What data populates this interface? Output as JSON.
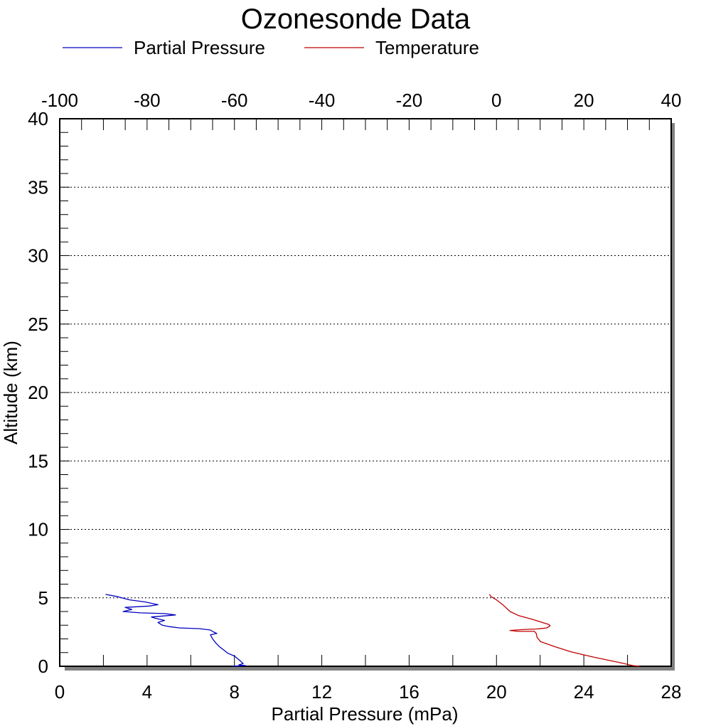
{
  "chart_data": {
    "type": "line",
    "title": "Ozonesonde Data",
    "xlabel": "Partial Pressure (mPa)",
    "ylabel": "Altitude (km)",
    "x_bottom": {
      "range": [
        0,
        28
      ],
      "ticks": [
        "0",
        "4",
        "8",
        "12",
        "16",
        "20",
        "24",
        "28"
      ]
    },
    "x_top": {
      "range": [
        -100,
        40
      ],
      "ticks": [
        "-100",
        "-80",
        "-60",
        "-40",
        "-20",
        "0",
        "20",
        "40"
      ]
    },
    "y": {
      "range": [
        0,
        40
      ],
      "ticks": [
        "0",
        "5",
        "10",
        "15",
        "20",
        "25",
        "30",
        "35",
        "40"
      ],
      "grid": "dotted"
    },
    "legend": {
      "position": "top"
    },
    "series": [
      {
        "name": "Partial Pressure",
        "axis": "bottom",
        "color": "#0000c0",
        "points": [
          [
            7.9,
            0.0
          ],
          [
            8.5,
            0.05
          ],
          [
            8.2,
            0.1
          ],
          [
            8.4,
            0.2
          ],
          [
            8.3,
            0.35
          ],
          [
            8.15,
            0.55
          ],
          [
            8.0,
            0.75
          ],
          [
            7.7,
            0.95
          ],
          [
            7.5,
            1.2
          ],
          [
            7.3,
            1.45
          ],
          [
            7.15,
            1.7
          ],
          [
            7.0,
            2.0
          ],
          [
            6.9,
            2.3
          ],
          [
            7.2,
            2.4
          ],
          [
            7.05,
            2.5
          ],
          [
            6.9,
            2.65
          ],
          [
            6.4,
            2.75
          ],
          [
            5.5,
            2.8
          ],
          [
            5.0,
            2.9
          ],
          [
            4.7,
            3.0
          ],
          [
            4.5,
            3.2
          ],
          [
            4.8,
            3.35
          ],
          [
            4.4,
            3.5
          ],
          [
            4.2,
            3.6
          ],
          [
            5.3,
            3.75
          ],
          [
            4.8,
            3.85
          ],
          [
            3.7,
            3.9
          ],
          [
            2.9,
            4.0
          ],
          [
            3.3,
            4.15
          ],
          [
            3.0,
            4.3
          ],
          [
            4.1,
            4.4
          ],
          [
            4.5,
            4.5
          ],
          [
            3.9,
            4.7
          ],
          [
            3.2,
            4.85
          ],
          [
            2.6,
            5.1
          ],
          [
            2.1,
            5.25
          ]
        ]
      },
      {
        "name": "Temperature",
        "axis": "top",
        "color": "#c00000",
        "points": [
          [
            32.7,
            0.0
          ],
          [
            31.2,
            0.05
          ],
          [
            27.8,
            0.3
          ],
          [
            22.5,
            0.65
          ],
          [
            17.1,
            1.05
          ],
          [
            13.2,
            1.45
          ],
          [
            10.1,
            1.8
          ],
          [
            9.3,
            2.1
          ],
          [
            9.1,
            2.4
          ],
          [
            8.7,
            2.55
          ],
          [
            4.9,
            2.55
          ],
          [
            3.1,
            2.62
          ],
          [
            5.9,
            2.68
          ],
          [
            9.1,
            2.72
          ],
          [
            11.5,
            2.8
          ],
          [
            12.3,
            2.95
          ],
          [
            12.0,
            3.05
          ],
          [
            8.5,
            3.4
          ],
          [
            5.1,
            3.7
          ],
          [
            3.1,
            4.0
          ],
          [
            1.6,
            4.45
          ],
          [
            0.0,
            4.85
          ],
          [
            -1.3,
            5.1
          ],
          [
            -1.6,
            5.25
          ]
        ]
      }
    ]
  }
}
